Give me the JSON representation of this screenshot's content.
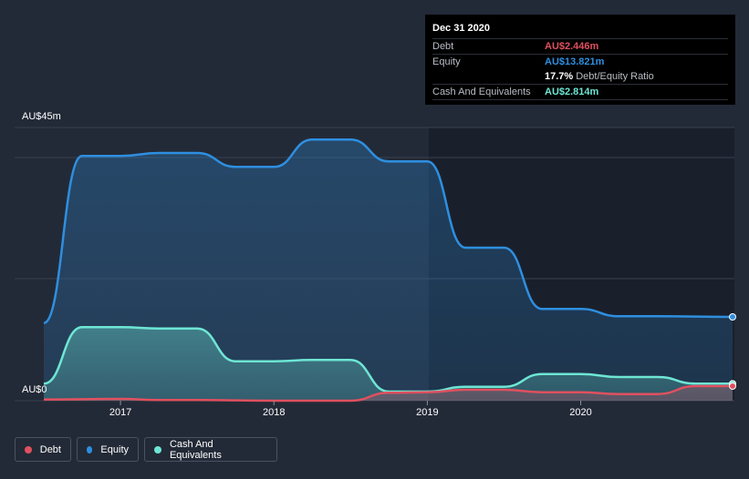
{
  "tooltip": {
    "date": "Dec 31 2020",
    "debt_label": "Debt",
    "debt_value": "AU$2.446m",
    "equity_label": "Equity",
    "equity_value": "AU$13.821m",
    "ratio_value": "17.7%",
    "ratio_label": "Debt/Equity Ratio",
    "cash_label": "Cash And Equivalents",
    "cash_value": "AU$2.814m"
  },
  "colors": {
    "debt": "#e0505f",
    "equity": "#2e8fe0",
    "cash": "#6ee6d4",
    "background": "#232a37"
  },
  "chart_data": {
    "type": "area",
    "y_top_label": "AU$45m",
    "y_bottom_label": "AU$0",
    "xlim": [
      2016.5,
      2020.99
    ],
    "ylim": [
      0,
      45
    ],
    "x_ticks": [
      {
        "value": 2017,
        "label": "2017"
      },
      {
        "value": 2018,
        "label": "2018"
      },
      {
        "value": 2019,
        "label": "2019"
      },
      {
        "value": 2020,
        "label": "2020"
      }
    ],
    "series": [
      {
        "name": "Equity",
        "color_key": "equity",
        "points": [
          [
            2016.5,
            12.8
          ],
          [
            2016.75,
            40.3
          ],
          [
            2017.0,
            40.3
          ],
          [
            2017.25,
            40.8
          ],
          [
            2017.5,
            40.8
          ],
          [
            2017.75,
            38.5
          ],
          [
            2018.0,
            38.5
          ],
          [
            2018.25,
            43.0
          ],
          [
            2018.5,
            43.0
          ],
          [
            2018.75,
            39.4
          ],
          [
            2019.0,
            39.4
          ],
          [
            2019.25,
            25.2
          ],
          [
            2019.5,
            25.2
          ],
          [
            2019.75,
            15.1
          ],
          [
            2020.0,
            15.1
          ],
          [
            2020.25,
            13.9
          ],
          [
            2020.5,
            13.9
          ],
          [
            2020.99,
            13.8
          ]
        ]
      },
      {
        "name": "Cash And Equivalents",
        "color_key": "cash",
        "points": [
          [
            2016.5,
            2.8
          ],
          [
            2016.75,
            12.1
          ],
          [
            2017.0,
            12.1
          ],
          [
            2017.25,
            11.9
          ],
          [
            2017.5,
            11.9
          ],
          [
            2017.75,
            6.5
          ],
          [
            2018.0,
            6.5
          ],
          [
            2018.25,
            6.7
          ],
          [
            2018.5,
            6.7
          ],
          [
            2018.75,
            1.5
          ],
          [
            2019.0,
            1.5
          ],
          [
            2019.25,
            2.3
          ],
          [
            2019.5,
            2.3
          ],
          [
            2019.75,
            4.4
          ],
          [
            2020.0,
            4.4
          ],
          [
            2020.25,
            3.9
          ],
          [
            2020.5,
            3.9
          ],
          [
            2020.75,
            2.8
          ],
          [
            2020.99,
            2.8
          ]
        ]
      },
      {
        "name": "Debt",
        "color_key": "debt",
        "points": [
          [
            2016.5,
            0.2
          ],
          [
            2017.0,
            0.3
          ],
          [
            2017.25,
            0.1
          ],
          [
            2017.5,
            0.1
          ],
          [
            2018.0,
            0.0
          ],
          [
            2018.5,
            0.0
          ],
          [
            2018.75,
            1.3
          ],
          [
            2019.0,
            1.4
          ],
          [
            2019.25,
            1.8
          ],
          [
            2019.5,
            1.8
          ],
          [
            2019.75,
            1.4
          ],
          [
            2020.0,
            1.4
          ],
          [
            2020.25,
            1.1
          ],
          [
            2020.5,
            1.1
          ],
          [
            2020.75,
            2.4
          ],
          [
            2020.99,
            2.4
          ]
        ]
      }
    ],
    "legend": [
      {
        "name": "Debt",
        "color_key": "debt"
      },
      {
        "name": "Equity",
        "color_key": "equity"
      },
      {
        "name": "Cash And Equivalents",
        "color_key": "cash"
      }
    ],
    "legend_position": "bottom-left",
    "grid": true
  }
}
